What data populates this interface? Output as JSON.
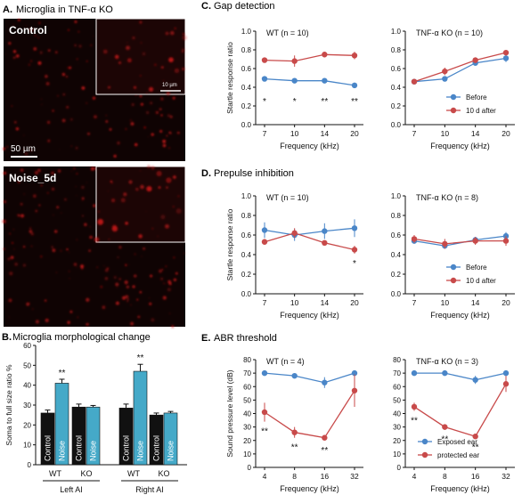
{
  "panels": {
    "A": {
      "letter": "A.",
      "title": "Microglia in TNF-α KO",
      "img_top_label": "Control",
      "img_bottom_label": "Noise_5d",
      "scalebar_main": "50 µm",
      "scalebar_inset": "10 µm"
    },
    "B": {
      "letter": "B.",
      "title": "Microglia morphological change"
    },
    "C": {
      "letter": "C.",
      "title": "Gap detection"
    },
    "D": {
      "letter": "D.",
      "title": "Prepulse inhibition"
    },
    "E": {
      "letter": "E.",
      "title": "ABR threshold"
    }
  },
  "colors": {
    "before": "#4a86c8",
    "after": "#c84a4a",
    "control_bar": "#111111",
    "noise_bar": "#45a9c8",
    "micro_red": "#d01a1a"
  },
  "chart_data": [
    {
      "id": "B",
      "type": "bar",
      "ylabel": "Soma to full size ratio %",
      "ylim": [
        0,
        60
      ],
      "yticks": [
        0,
        10,
        20,
        30,
        40,
        50,
        60
      ],
      "categories": [
        "WT",
        "KO",
        "WT",
        "KO"
      ],
      "groups": [
        "Left AI",
        "Right AI"
      ],
      "series": [
        {
          "name": "Control",
          "values": [
            26,
            29,
            28.5,
            25
          ],
          "errors": [
            1.5,
            1.5,
            2,
            1
          ]
        },
        {
          "name": "Noise",
          "values": [
            41,
            29,
            47,
            26
          ],
          "errors": [
            2,
            0.8,
            3.5,
            0.8
          ]
        }
      ],
      "annotations": [
        {
          "text": "**",
          "category_index": 0
        },
        {
          "text": "**",
          "category_index": 2
        }
      ]
    },
    {
      "id": "C1",
      "type": "line",
      "subtitle": "WT (n = 10)",
      "xlabel": "Frequency (kHz)",
      "ylabel": "Startle response ratio",
      "categories": [
        "7",
        "10",
        "14",
        "20"
      ],
      "ylim": [
        0,
        1.0
      ],
      "yticks": [
        "0.0",
        "0.2",
        "0.4",
        "0.6",
        "0.8",
        "1.0"
      ],
      "series": [
        {
          "values": [
            0.49,
            0.47,
            0.47,
            0.42
          ],
          "errors": [
            0.02,
            0.02,
            0.02,
            0.03
          ]
        },
        {
          "values": [
            0.69,
            0.68,
            0.75,
            0.74
          ],
          "errors": [
            0.02,
            0.06,
            0.03,
            0.04
          ]
        }
      ],
      "annotations": [
        "*",
        "*",
        "**",
        "**"
      ]
    },
    {
      "id": "C2",
      "type": "line",
      "subtitle": "TNF-α KO (n = 10)",
      "xlabel": "Frequency (kHz)",
      "categories": [
        "7",
        "10",
        "14",
        "20"
      ],
      "ylim": [
        0,
        1.0
      ],
      "yticks": [
        "0.0",
        "0.2",
        "0.4",
        "0.6",
        "0.8",
        "1.0"
      ],
      "series": [
        {
          "name": "Before",
          "values": [
            0.46,
            0.49,
            0.66,
            0.71
          ],
          "errors": [
            0.02,
            0.02,
            0.03,
            0.04
          ]
        },
        {
          "name": "10 d after",
          "values": [
            0.46,
            0.57,
            0.69,
            0.77
          ],
          "errors": [
            0.02,
            0.04,
            0.03,
            0.02
          ]
        }
      ]
    },
    {
      "id": "D1",
      "type": "line",
      "subtitle": "WT (n = 10)",
      "xlabel": "Frequency (kHz)",
      "ylabel": "Startle response ratio",
      "categories": [
        "7",
        "10",
        "14",
        "20"
      ],
      "ylim": [
        0,
        1.0
      ],
      "yticks": [
        "0.0",
        "0.2",
        "0.4",
        "0.6",
        "0.8",
        "1.0"
      ],
      "series": [
        {
          "values": [
            0.65,
            0.6,
            0.64,
            0.67
          ],
          "errors": [
            0.08,
            0.06,
            0.08,
            0.09
          ]
        },
        {
          "values": [
            0.53,
            0.62,
            0.52,
            0.45
          ],
          "errors": [
            0.03,
            0.05,
            0.02,
            0.04
          ]
        }
      ],
      "annotations": [
        "",
        "",
        "",
        "*"
      ]
    },
    {
      "id": "D2",
      "type": "line",
      "subtitle": "TNF-α KO (n = 8)",
      "xlabel": "Frequency (kHz)",
      "categories": [
        "7",
        "10",
        "14",
        "20"
      ],
      "ylim": [
        0,
        1.0
      ],
      "yticks": [
        "0.0",
        "0.2",
        "0.4",
        "0.6",
        "0.8",
        "1.0"
      ],
      "series": [
        {
          "name": "Before",
          "values": [
            0.54,
            0.49,
            0.55,
            0.59
          ],
          "errors": [
            0.03,
            0.03,
            0.03,
            0.04
          ]
        },
        {
          "name": "10 d after",
          "values": [
            0.56,
            0.51,
            0.54,
            0.54
          ],
          "errors": [
            0.04,
            0.05,
            0.04,
            0.05
          ]
        }
      ]
    },
    {
      "id": "E1",
      "type": "line",
      "subtitle": "WT (n = 4)",
      "xlabel": "Frequency (kHz)",
      "ylabel": "Sound pressure level (dB)",
      "categories": [
        "4",
        "8",
        "16",
        "32"
      ],
      "ylim": [
        0,
        80
      ],
      "yticks": [
        "0",
        "10",
        "20",
        "30",
        "40",
        "50",
        "60",
        "70",
        "80"
      ],
      "series": [
        {
          "values": [
            70,
            68,
            63,
            70
          ],
          "errors": [
            1.5,
            1.5,
            4,
            2
          ]
        },
        {
          "values": [
            41,
            26,
            22,
            57
          ],
          "errors": [
            7,
            4,
            2,
            12
          ]
        }
      ],
      "annotations": [
        "**",
        "**",
        "**",
        ""
      ]
    },
    {
      "id": "E2",
      "type": "line",
      "subtitle": "TNF-α KO (n = 3)",
      "xlabel": "Frequency (kHz)",
      "categories": [
        "4",
        "8",
        "16",
        "32"
      ],
      "ylim": [
        0,
        80
      ],
      "yticks": [
        "0",
        "10",
        "20",
        "30",
        "40",
        "50",
        "60",
        "70",
        "80"
      ],
      "series": [
        {
          "name": "Exposed ear",
          "values": [
            70,
            70,
            65,
            70
          ],
          "errors": [
            1,
            1,
            3,
            1
          ]
        },
        {
          "name": "protected ear",
          "values": [
            45,
            30,
            23,
            62
          ],
          "errors": [
            3,
            2,
            1,
            6
          ]
        }
      ],
      "annotations": [
        "**",
        "**",
        "**",
        ""
      ]
    }
  ]
}
